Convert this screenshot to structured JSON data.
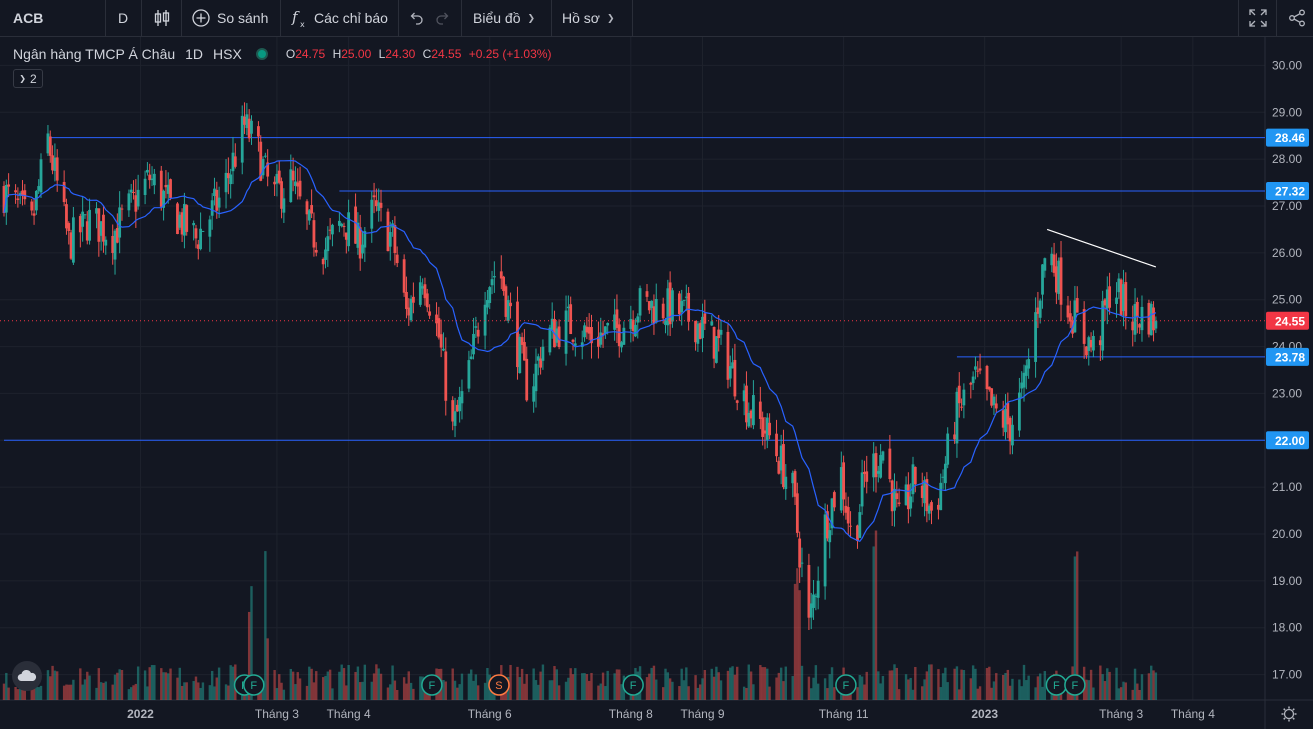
{
  "toolbar": {
    "symbol": "ACB",
    "interval": "D",
    "compare": "So sánh",
    "indicators": "Các chỉ báo",
    "chart_menu": "Biểu đồ",
    "profile_menu": "Hồ sơ"
  },
  "legend": {
    "name": "Ngân hàng TMCP Á Châu",
    "interval": "1D",
    "exchange": "HSX",
    "o_label": "O",
    "o": "24.75",
    "h_label": "H",
    "h": "25.00",
    "l_label": "L",
    "l": "24.30",
    "c_label": "C",
    "c": "24.55",
    "change": "+0.25 (+1.03%)",
    "collapsed_count": "2"
  },
  "colors": {
    "background": "#131722",
    "up": "#26a69a",
    "down": "#ef5350",
    "ma": "#2962ff",
    "hline": "#2962ff",
    "label_bg": "#2196f3",
    "last_price": "#f23645"
  },
  "chart_data": {
    "type": "candlestick",
    "y_range": [
      16.5,
      30.5
    ],
    "y_ticks": [
      "30.00",
      "29.00",
      "28.00",
      "27.00",
      "26.00",
      "25.00",
      "24.00",
      "23.00",
      "22.00",
      "21.00",
      "20.00",
      "19.00",
      "18.00",
      "17.00"
    ],
    "x_ticks": [
      "2022",
      "Tháng 3",
      "Tháng 4",
      "Tháng 6",
      "Tháng 8",
      "Tháng 9",
      "Tháng 11",
      "2023",
      "Tháng 3",
      "Tháng 4"
    ],
    "x_tick_dates": [
      "2022-01-01",
      "2022-03-01",
      "2022-04-01",
      "2022-06-01",
      "2022-08-01",
      "2022-09-01",
      "2022-11-01",
      "2023-01-01",
      "2023-03-01",
      "2023-04-01"
    ],
    "date_range": [
      "2021-11-03",
      "2023-04-27"
    ],
    "horizontal_lines": [
      {
        "price": 28.46,
        "label": "28.46",
        "start": "2021-11-22"
      },
      {
        "price": 27.32,
        "label": "27.32",
        "start": "2022-03-28"
      },
      {
        "price": 23.78,
        "label": "23.78",
        "start": "2022-12-20"
      },
      {
        "price": 22.0,
        "label": "22.00",
        "start": "2021-11-03"
      }
    ],
    "last_price": {
      "price": 24.55,
      "label": "24.55"
    },
    "trendline": {
      "start": [
        "2023-01-28",
        26.5
      ],
      "end": [
        "2023-03-16",
        25.7
      ]
    },
    "price_waypoints": [
      [
        "2021-11-03",
        27.3
      ],
      [
        "2021-11-15",
        26.6
      ],
      [
        "2021-11-22",
        28.4
      ],
      [
        "2021-12-01",
        26.2
      ],
      [
        "2021-12-10",
        26.7
      ],
      [
        "2021-12-20",
        26.4
      ],
      [
        "2022-01-05",
        27.6
      ],
      [
        "2022-01-15",
        26.9
      ],
      [
        "2022-01-25",
        26.3
      ],
      [
        "2022-02-05",
        27.2
      ],
      [
        "2022-02-15",
        28.7
      ],
      [
        "2022-02-20",
        28.3
      ],
      [
        "2022-02-27",
        27.2
      ],
      [
        "2022-03-07",
        27.5
      ],
      [
        "2022-03-15",
        26.5
      ],
      [
        "2022-03-22",
        26.1
      ],
      [
        "2022-03-30",
        26.7
      ],
      [
        "2022-04-05",
        26.2
      ],
      [
        "2022-04-12",
        26.9
      ],
      [
        "2022-04-20",
        26.3
      ],
      [
        "2022-04-26",
        24.7
      ],
      [
        "2022-05-03",
        25.6
      ],
      [
        "2022-05-10",
        24.2
      ],
      [
        "2022-05-16",
        22.2
      ],
      [
        "2022-05-23",
        23.4
      ],
      [
        "2022-05-30",
        25.3
      ],
      [
        "2022-06-05",
        25.7
      ],
      [
        "2022-06-12",
        24.2
      ],
      [
        "2022-06-18",
        23.0
      ],
      [
        "2022-06-25",
        24.2
      ],
      [
        "2022-07-05",
        24.5
      ],
      [
        "2022-07-15",
        24.2
      ],
      [
        "2022-07-25",
        24.3
      ],
      [
        "2022-08-05",
        24.9
      ],
      [
        "2022-08-20",
        24.8
      ],
      [
        "2022-08-30",
        24.5
      ],
      [
        "2022-09-10",
        23.9
      ],
      [
        "2022-09-20",
        22.8
      ],
      [
        "2022-10-01",
        22.0
      ],
      [
        "2022-10-10",
        20.9
      ],
      [
        "2022-10-17",
        18.0
      ],
      [
        "2022-10-24",
        20.2
      ],
      [
        "2022-10-31",
        21.3
      ],
      [
        "2022-11-05",
        19.7
      ],
      [
        "2022-11-10",
        21.2
      ],
      [
        "2022-11-18",
        21.8
      ],
      [
        "2022-11-25",
        20.2
      ],
      [
        "2022-12-02",
        21.2
      ],
      [
        "2022-12-10",
        20.4
      ],
      [
        "2022-12-20",
        22.6
      ],
      [
        "2022-12-28",
        23.3
      ],
      [
        "2023-01-05",
        22.6
      ],
      [
        "2023-01-12",
        22.3
      ],
      [
        "2023-01-18",
        23.1
      ],
      [
        "2023-01-28",
        26.2
      ],
      [
        "2023-02-05",
        25.0
      ],
      [
        "2023-02-13",
        24.2
      ],
      [
        "2023-02-18",
        23.9
      ],
      [
        "2023-02-25",
        25.4
      ],
      [
        "2023-03-05",
        24.6
      ],
      [
        "2023-03-12",
        24.7
      ],
      [
        "2023-03-16",
        24.55
      ]
    ],
    "volume_spike_dates": [
      "2022-02-18",
      "2022-02-25",
      "2022-10-12",
      "2022-11-14",
      "2023-02-10"
    ],
    "events": [
      {
        "date": "2022-02-15",
        "label": "F",
        "color": "#22ab94"
      },
      {
        "date": "2022-02-19",
        "label": "F",
        "color": "#22ab94"
      },
      {
        "date": "2022-05-07",
        "label": "F",
        "color": "#22ab94"
      },
      {
        "date": "2022-06-05",
        "label": "S",
        "color": "#ff7b42"
      },
      {
        "date": "2022-08-02",
        "label": "F",
        "color": "#22ab94"
      },
      {
        "date": "2022-11-02",
        "label": "F",
        "color": "#22ab94"
      },
      {
        "date": "2023-02-01",
        "label": "F",
        "color": "#22ab94"
      },
      {
        "date": "2023-02-09",
        "label": "F",
        "color": "#22ab94"
      }
    ]
  }
}
